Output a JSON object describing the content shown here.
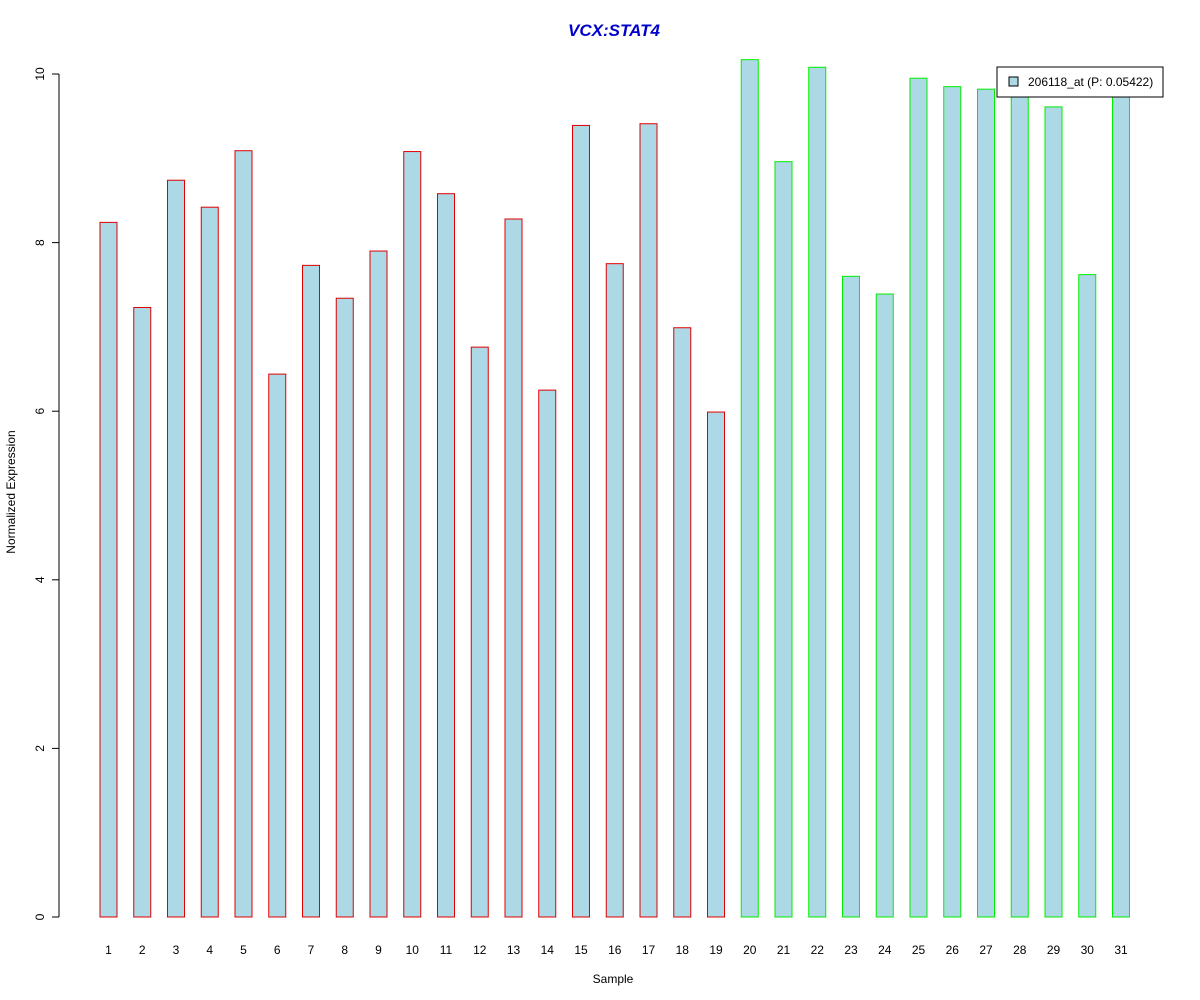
{
  "chart_data": {
    "type": "bar",
    "title": "VCX:STAT4",
    "xlabel": "Sample",
    "ylabel": "Normalized Expression",
    "ylim": [
      0,
      10.17
    ],
    "yticks": [
      "0",
      "2",
      "4",
      "6",
      "8",
      "10"
    ],
    "grid": false,
    "legend_position": "top-right",
    "categories": [
      "1",
      "2",
      "3",
      "4",
      "5",
      "6",
      "7",
      "8",
      "9",
      "10",
      "11",
      "12",
      "13",
      "14",
      "15",
      "16",
      "17",
      "18",
      "19",
      "20",
      "21",
      "22",
      "23",
      "24",
      "25",
      "26",
      "27",
      "28",
      "29",
      "30",
      "31"
    ],
    "series": [
      {
        "name": "206118_at (P: 0.05422)",
        "values": [
          8.24,
          7.23,
          8.74,
          8.42,
          9.09,
          6.44,
          7.73,
          7.34,
          7.9,
          9.08,
          8.58,
          6.76,
          8.28,
          6.25,
          9.39,
          7.75,
          9.41,
          6.99,
          5.99,
          10.17,
          8.96,
          10.08,
          7.6,
          7.39,
          9.95,
          9.85,
          9.82,
          9.8,
          9.61,
          7.62,
          9.78
        ],
        "group_edge_colors": [
          "#e00000",
          "#e00000",
          "#e00000",
          "#e00000",
          "#e00000",
          "#e00000",
          "#e00000",
          "#e00000",
          "#e00000",
          "#e00000",
          "#e00000",
          "#e00000",
          "#e00000",
          "#e00000",
          "#e00000",
          "#e00000",
          "#e00000",
          "#e00000",
          "#e00000",
          "#00ee00",
          "#00ee00",
          "#00ee00",
          "#00ee00",
          "#00ee00",
          "#00ee00",
          "#00ee00",
          "#00ee00",
          "#00ee00",
          "#00ee00",
          "#00ee00",
          "#00ee00"
        ]
      }
    ],
    "colors": {
      "bar_fill": "#add8e6",
      "title": "#0000cc",
      "group1_edge": "#e00000",
      "group2_edge": "#00ee00",
      "axis": "#000000"
    }
  }
}
